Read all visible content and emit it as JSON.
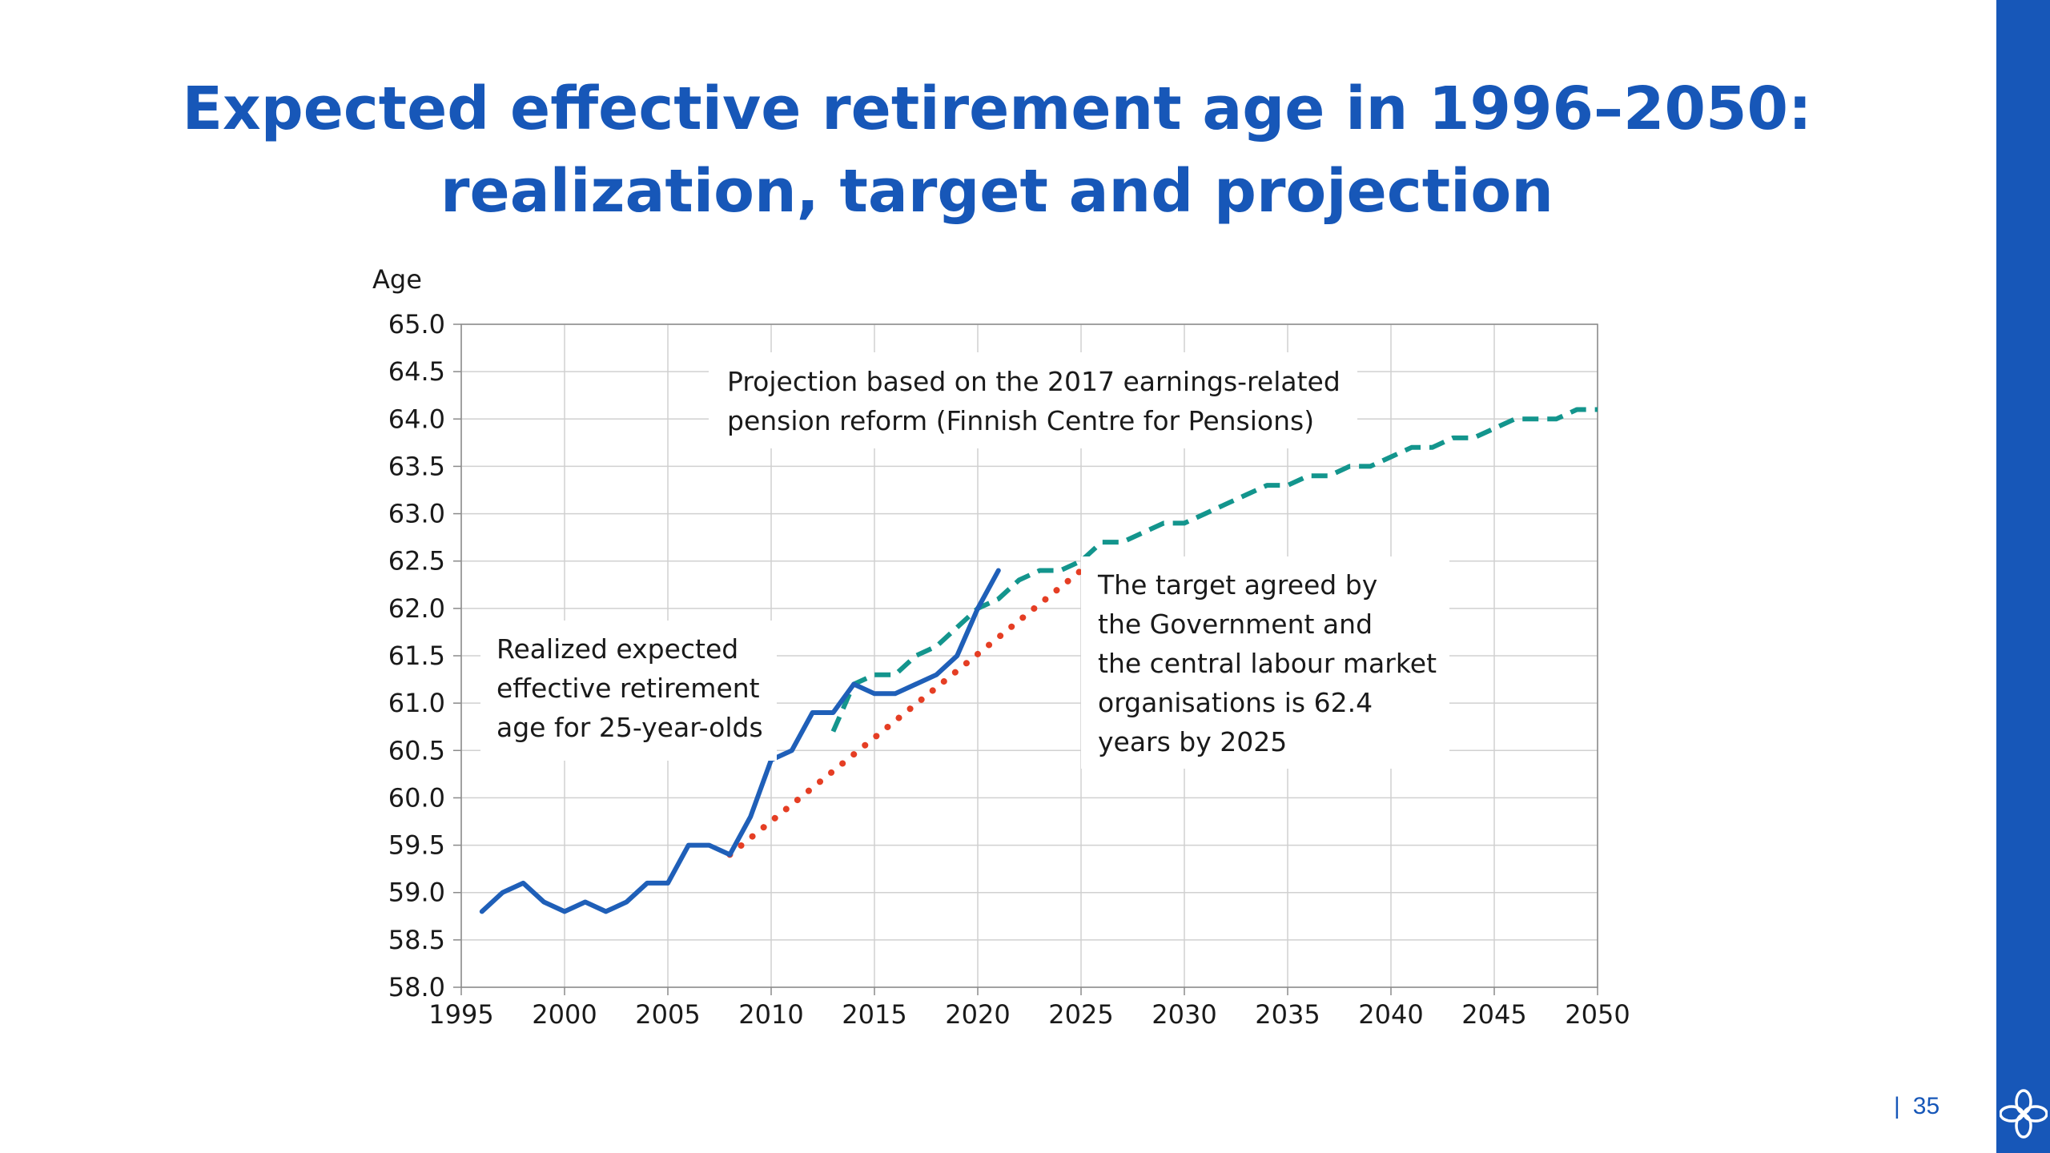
{
  "slide": {
    "title_line1": "Expected effective retirement age in 1996–2050:",
    "title_line2": "realization, target and projection",
    "page_number": "35",
    "page_separator": "|",
    "accent_color": "#1757b8"
  },
  "chart_data": {
    "type": "line",
    "title": "",
    "xlabel": "",
    "ylabel": "Age",
    "xlim": [
      1995,
      2050
    ],
    "ylim": [
      58.0,
      65.0
    ],
    "x_ticks": [
      1995,
      2000,
      2005,
      2010,
      2015,
      2020,
      2025,
      2030,
      2035,
      2040,
      2045,
      2050
    ],
    "y_ticks": [
      "58.0",
      "58.5",
      "59.0",
      "59.5",
      "60.0",
      "60.5",
      "61.0",
      "61.5",
      "62.0",
      "62.5",
      "63.0",
      "63.5",
      "64.0",
      "64.5",
      "65.0"
    ],
    "grid": true,
    "series": [
      {
        "style": "solid",
        "color": "#1f5fb8",
        "x": [
          1996,
          1997,
          1998,
          1999,
          2000,
          2001,
          2002,
          2003,
          2004,
          2005,
          2006,
          2007,
          2008,
          2009,
          2010,
          2011,
          2012,
          2013,
          2014,
          2015,
          2016,
          2017,
          2018,
          2019,
          2020,
          2021
        ],
        "y": [
          58.8,
          59.0,
          59.1,
          58.9,
          58.8,
          58.9,
          58.8,
          58.9,
          59.1,
          59.1,
          59.5,
          59.5,
          59.4,
          59.8,
          60.4,
          60.5,
          60.9,
          60.9,
          61.2,
          61.1,
          61.1,
          61.2,
          61.3,
          61.5,
          62.0,
          62.4
        ]
      },
      {
        "style": "dotted",
        "color": "#e53e24",
        "x": [
          2008,
          2025
        ],
        "y": [
          59.4,
          62.4
        ]
      },
      {
        "style": "dashed",
        "color": "#13958d",
        "x": [
          2013,
          2014,
          2015,
          2016,
          2017,
          2018,
          2019,
          2020,
          2021,
          2022,
          2023,
          2024,
          2025,
          2026,
          2027,
          2028,
          2029,
          2030,
          2031,
          2032,
          2033,
          2034,
          2035,
          2036,
          2037,
          2038,
          2039,
          2040,
          2041,
          2042,
          2043,
          2044,
          2045,
          2046,
          2047,
          2048,
          2049,
          2050
        ],
        "y": [
          60.7,
          61.2,
          61.3,
          61.3,
          61.5,
          61.6,
          61.8,
          62.0,
          62.1,
          62.3,
          62.4,
          62.4,
          62.5,
          62.7,
          62.7,
          62.8,
          62.9,
          62.9,
          63.0,
          63.1,
          63.2,
          63.3,
          63.3,
          63.4,
          63.4,
          63.5,
          63.5,
          63.6,
          63.7,
          63.7,
          63.8,
          63.8,
          63.9,
          64.0,
          64.0,
          64.0,
          64.1,
          64.1
        ]
      }
    ],
    "annotations": [
      {
        "lines": [
          "Projection based on the 2017 earnings-related",
          "pension reform (Finnish Centre for Pensions)"
        ]
      },
      {
        "lines": [
          "Realized expected",
          "effective retirement",
          "age for 25-year-olds"
        ]
      },
      {
        "lines": [
          "The target agreed by",
          "the Government and",
          "the central labour market",
          "organisations is 62.4",
          "years by 2025"
        ]
      }
    ]
  }
}
